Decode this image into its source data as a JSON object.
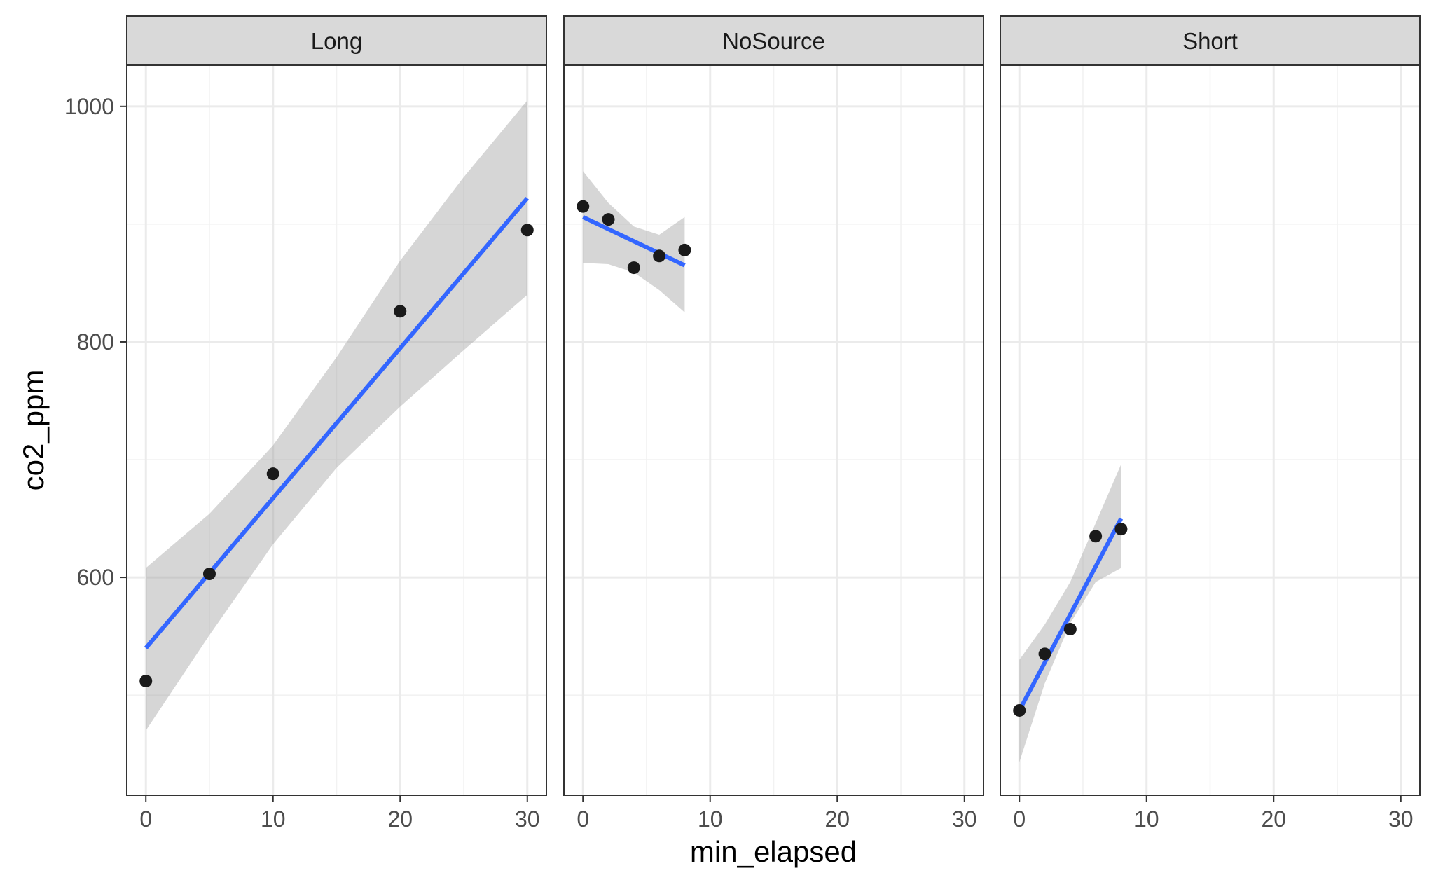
{
  "chart_data": {
    "type": "scatter",
    "xlabel": "min_elapsed",
    "ylabel": "co2_ppm",
    "xlim": [
      -1.5,
      31.5
    ],
    "ylim": [
      415,
      1035
    ],
    "x_ticks": [
      0,
      10,
      20,
      30
    ],
    "x_tick_labels": [
      "0",
      "10",
      "20",
      "30"
    ],
    "y_ticks": [
      600,
      800,
      1000
    ],
    "y_tick_labels": [
      "600",
      "800",
      "1000"
    ],
    "grid": true,
    "facet_by": "source",
    "panels": [
      {
        "name": "Long",
        "points": [
          {
            "x": 0,
            "y": 512
          },
          {
            "x": 5,
            "y": 603
          },
          {
            "x": 10,
            "y": 688
          },
          {
            "x": 20,
            "y": 826
          },
          {
            "x": 30,
            "y": 895
          }
        ],
        "fit": {
          "x": [
            0,
            30
          ],
          "y": [
            540,
            922
          ]
        },
        "ribbon": {
          "x": [
            0,
            5,
            10,
            15,
            20,
            25,
            30
          ],
          "lower": [
            470,
            551,
            628,
            693,
            745,
            793,
            840
          ],
          "upper": [
            608,
            654,
            712,
            787,
            869,
            940,
            1005
          ]
        }
      },
      {
        "name": "NoSource",
        "points": [
          {
            "x": 0,
            "y": 915
          },
          {
            "x": 2,
            "y": 904
          },
          {
            "x": 4,
            "y": 863
          },
          {
            "x": 6,
            "y": 873
          },
          {
            "x": 8,
            "y": 878
          }
        ],
        "fit": {
          "x": [
            0,
            8
          ],
          "y": [
            906,
            865
          ]
        },
        "ribbon": {
          "x": [
            0,
            2,
            4,
            6,
            8
          ],
          "lower": [
            867,
            866,
            859,
            844,
            825
          ],
          "upper": [
            945,
            918,
            898,
            891,
            906
          ]
        }
      },
      {
        "name": "Short",
        "points": [
          {
            "x": 0,
            "y": 487
          },
          {
            "x": 2,
            "y": 535
          },
          {
            "x": 4,
            "y": 556
          },
          {
            "x": 6,
            "y": 635
          },
          {
            "x": 8,
            "y": 641
          }
        ],
        "fit": {
          "x": [
            0,
            8
          ],
          "y": [
            487,
            650
          ]
        },
        "ribbon": {
          "x": [
            0,
            2,
            4,
            6,
            8
          ],
          "lower": [
            443,
            510,
            561,
            596,
            608
          ],
          "upper": [
            530,
            560,
            596,
            646,
            696
          ]
        }
      }
    ]
  },
  "colors": {
    "background": "#ffffff",
    "panel_border": "#333333",
    "strip_fill": "#d9d9d9",
    "grid_major": "#ebebeb",
    "grid_minor": "#f2f2f2",
    "point": "#1a1a1a",
    "fit_line": "#3366ff",
    "ribbon": "#999999"
  }
}
